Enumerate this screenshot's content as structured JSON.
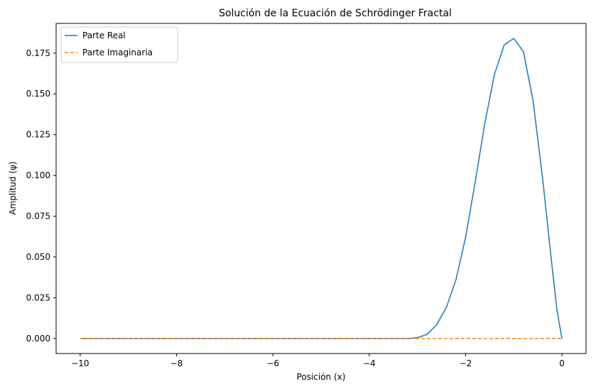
{
  "chart_data": {
    "type": "line",
    "title": "Solución de la Ecuación de Schrödinger Fractal",
    "xlabel": "Posición (x)",
    "ylabel": "Amplitud (ψ)",
    "xlim": [
      -10.5,
      0.5
    ],
    "ylim": [
      -0.0092,
      0.1932
    ],
    "x_ticks": [
      -10,
      -8,
      -6,
      -4,
      -2,
      0
    ],
    "x_tick_labels": [
      "−10",
      "−8",
      "−6",
      "−4",
      "−2",
      "0"
    ],
    "y_ticks": [
      0.0,
      0.025,
      0.05,
      0.075,
      0.1,
      0.125,
      0.15,
      0.175
    ],
    "y_tick_labels": [
      "0.000",
      "0.025",
      "0.050",
      "0.075",
      "0.100",
      "0.125",
      "0.150",
      "0.175"
    ],
    "grid": false,
    "legend": "top-left",
    "series": [
      {
        "name": "Parte Real",
        "color": "#1f77b4",
        "style": "solid",
        "x": [
          -10,
          -4,
          -3.5,
          -3.2,
          -3.0,
          -2.8,
          -2.6,
          -2.4,
          -2.2,
          -2.0,
          -1.8,
          -1.6,
          -1.4,
          -1.2,
          -1.0,
          -0.8,
          -0.6,
          -0.4,
          -0.2,
          -0.1,
          0
        ],
        "y": [
          0.0,
          0.0,
          0.0,
          0.0,
          0.0005,
          0.0025,
          0.0085,
          0.019,
          0.036,
          0.062,
          0.096,
          0.132,
          0.162,
          0.18,
          0.184,
          0.176,
          0.146,
          0.098,
          0.043,
          0.017,
          0.0
        ]
      },
      {
        "name": "Parte Imaginaria",
        "color": "#ff7f0e",
        "style": "dashed",
        "x": [
          -10,
          0
        ],
        "y": [
          0.0,
          0.0
        ]
      }
    ]
  }
}
